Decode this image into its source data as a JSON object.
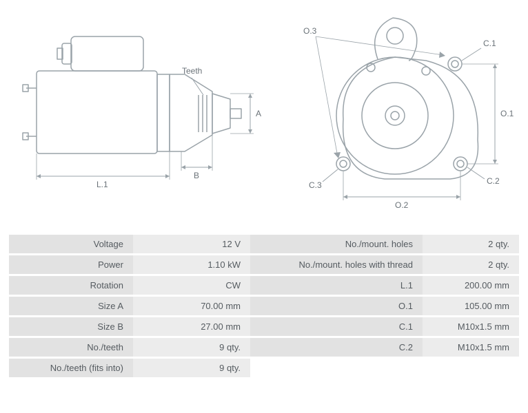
{
  "diagram": {
    "type": "technical-drawing",
    "stroke_color": "#9aa3a9",
    "stroke_width": 1.5,
    "label_color": "#6a7278",
    "label_fontsize": 12,
    "background_color": "#ffffff",
    "side_view": {
      "labels": {
        "teeth": "Teeth",
        "A": "A",
        "B": "B",
        "L1": "L.1"
      }
    },
    "front_view": {
      "labels": {
        "O1": "O.1",
        "O2": "O.2",
        "O3": "O.3",
        "C1": "C.1",
        "C2": "C.2",
        "C3": "C.3"
      }
    }
  },
  "table": {
    "row_bg": "#ececec",
    "label_bg": "#e2e2e2",
    "text_color": "#555b60",
    "fontsize": 13,
    "rows": [
      {
        "l_label": "Voltage",
        "l_val": "12 V",
        "r_label": "No./mount. holes",
        "r_val": "2 qty."
      },
      {
        "l_label": "Power",
        "l_val": "1.10 kW",
        "r_label": "No./mount. holes with thread",
        "r_val": "2 qty."
      },
      {
        "l_label": "Rotation",
        "l_val": "CW",
        "r_label": "L.1",
        "r_val": "200.00 mm"
      },
      {
        "l_label": "Size A",
        "l_val": "70.00 mm",
        "r_label": "O.1",
        "r_val": "105.00 mm"
      },
      {
        "l_label": "Size B",
        "l_val": "27.00 mm",
        "r_label": "C.1",
        "r_val": "M10x1.5 mm"
      },
      {
        "l_label": "No./teeth",
        "l_val": "9 qty.",
        "r_label": "C.2",
        "r_val": "M10x1.5 mm"
      },
      {
        "l_label": "No./teeth (fits into)",
        "l_val": "9 qty.",
        "r_label": "",
        "r_val": ""
      }
    ]
  }
}
